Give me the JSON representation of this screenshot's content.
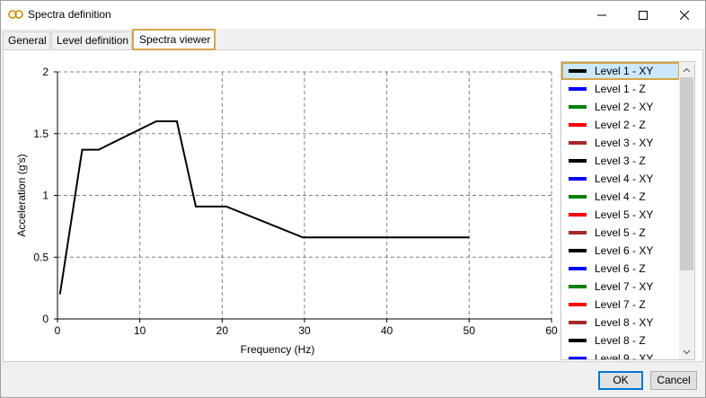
{
  "window": {
    "title": "Spectra definition",
    "controls": {
      "minimize": "minimize-icon",
      "maximize": "maximize-icon",
      "close": "close-icon"
    }
  },
  "tabs": [
    {
      "label": "General",
      "active": false
    },
    {
      "label": "Level definition",
      "active": false
    },
    {
      "label": "Spectra viewer",
      "active": true
    }
  ],
  "chart_data": {
    "type": "line",
    "xlabel": "Frequency (Hz)",
    "ylabel": "Acceleration (g's)",
    "xlim": [
      0,
      60
    ],
    "ylim": [
      0,
      2
    ],
    "xticks": [
      "0",
      "10",
      "20",
      "30",
      "40",
      "50",
      "60"
    ],
    "yticks": [
      "0",
      "0.5",
      "1",
      "1.5",
      "2"
    ],
    "grid": true,
    "series": [
      {
        "name": "Level 1 - XY",
        "color": "#000000",
        "x": [
          0.3,
          3,
          5,
          12,
          14.5,
          16.8,
          20.5,
          29.8,
          50
        ],
        "y": [
          0.2,
          1.37,
          1.37,
          1.6,
          1.6,
          0.91,
          0.91,
          0.66,
          0.66
        ]
      }
    ]
  },
  "legend": {
    "items": [
      {
        "label": "Level 1 - XY",
        "color": "#000000",
        "selected": true
      },
      {
        "label": "Level 1 - Z",
        "color": "#0000ff"
      },
      {
        "label": "Level 2 - XY",
        "color": "#008000"
      },
      {
        "label": "Level 2 - Z",
        "color": "#ff0000"
      },
      {
        "label": "Level 3 - XY",
        "color": "#a52a2a"
      },
      {
        "label": "Level 3 - Z",
        "color": "#000000"
      },
      {
        "label": "Level 4 - XY",
        "color": "#0000ff"
      },
      {
        "label": "Level 4 - Z",
        "color": "#008000"
      },
      {
        "label": "Level 5 - XY",
        "color": "#ff0000"
      },
      {
        "label": "Level 5 - Z",
        "color": "#a52a2a"
      },
      {
        "label": "Level 6 - XY",
        "color": "#000000"
      },
      {
        "label": "Level 6 - Z",
        "color": "#0000ff"
      },
      {
        "label": "Level 7 - XY",
        "color": "#008000"
      },
      {
        "label": "Level 7 - Z",
        "color": "#ff0000"
      },
      {
        "label": "Level 8 - XY",
        "color": "#a52a2a"
      },
      {
        "label": "Level 8 - Z",
        "color": "#000000"
      },
      {
        "label": "Level 9 - XY",
        "color": "#0000ff"
      }
    ]
  },
  "buttons": {
    "ok": "OK",
    "cancel": "Cancel"
  },
  "colors": {
    "accent_highlight": "#d4a64a",
    "selection": "#cce8ff"
  }
}
